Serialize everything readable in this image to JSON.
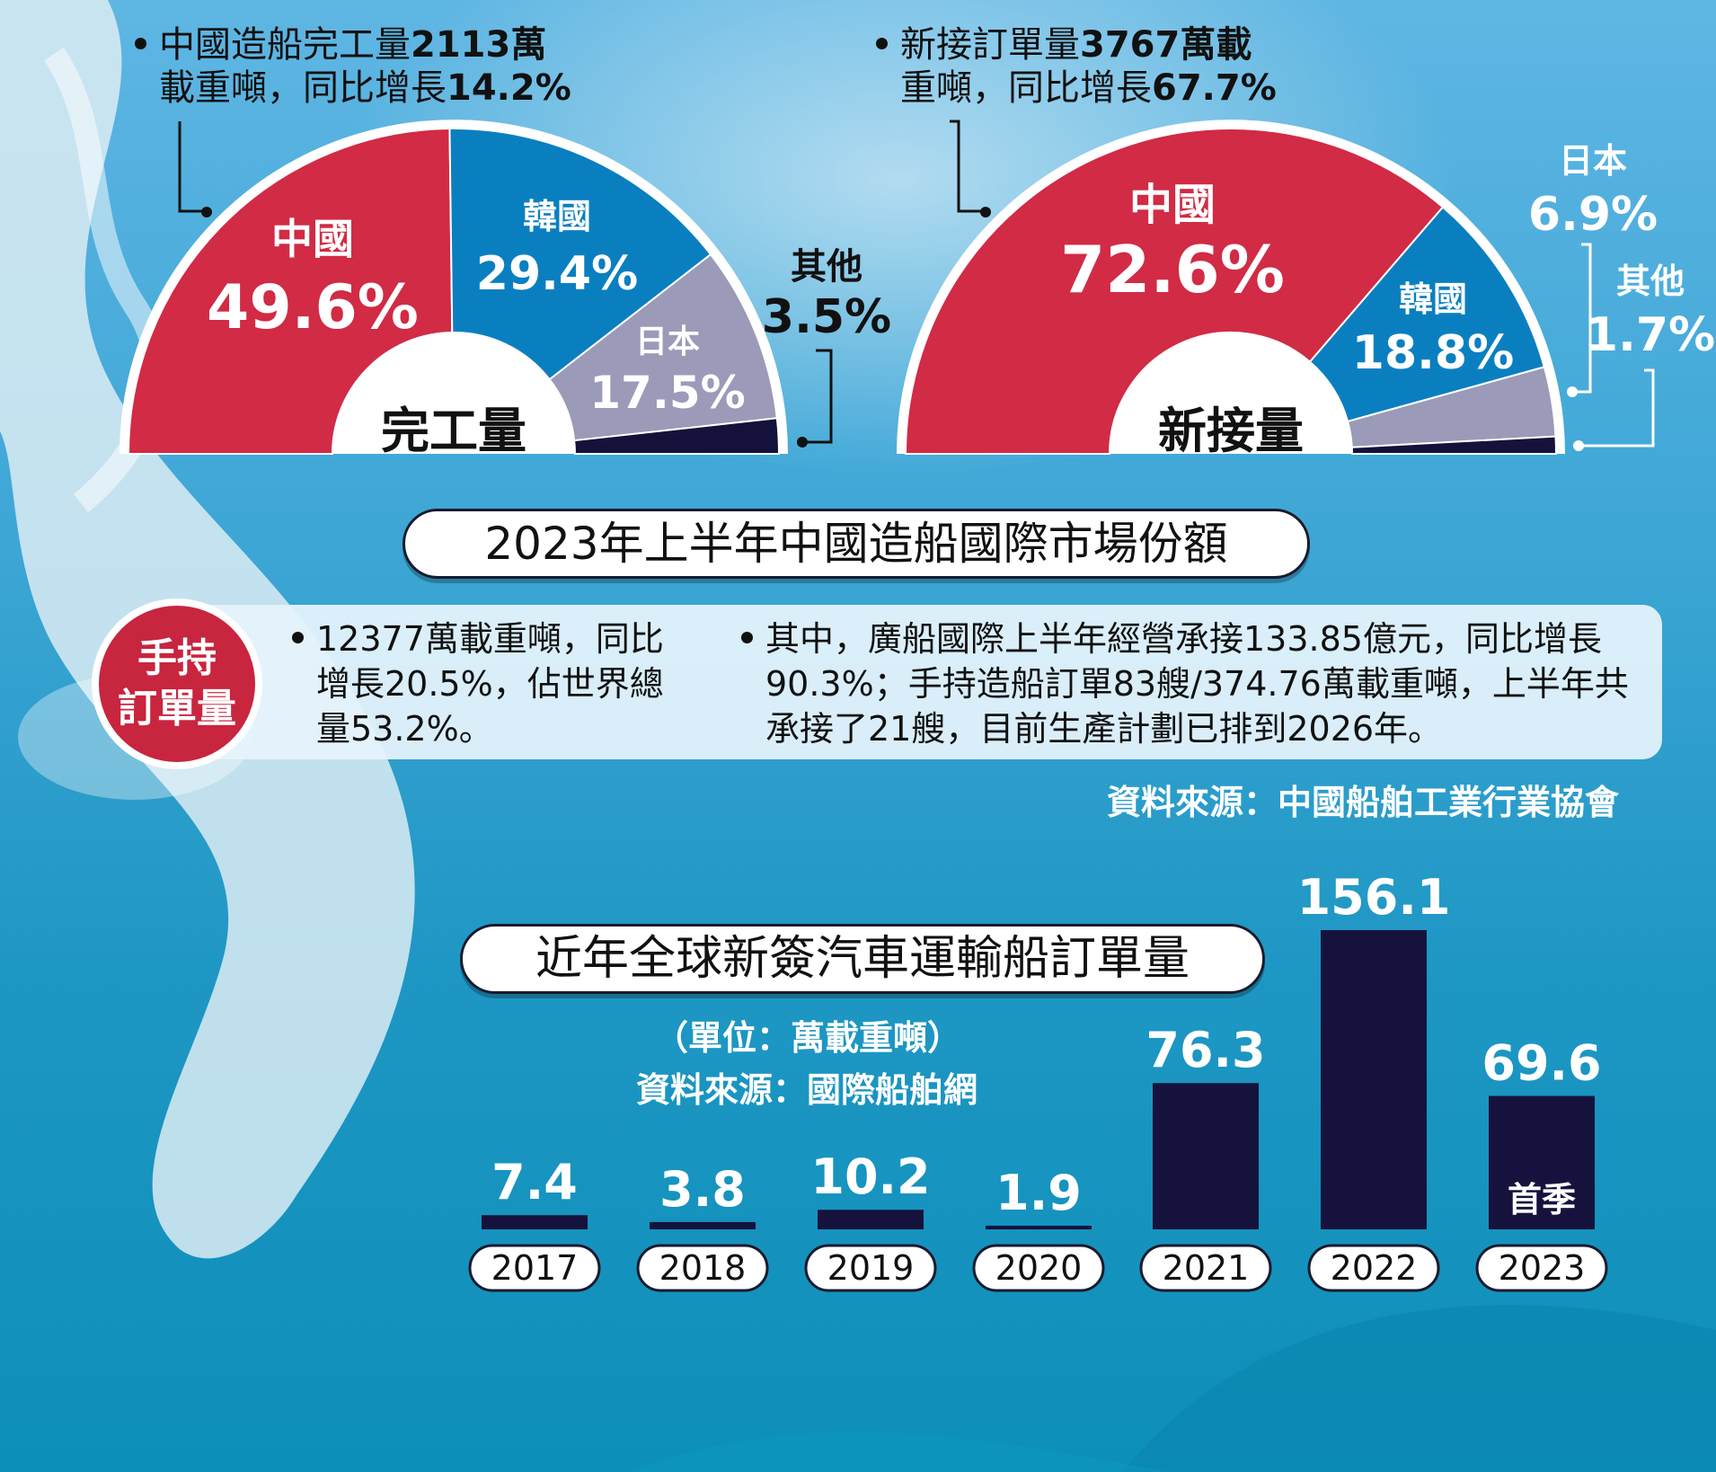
{
  "completion_note": {
    "line1_prefix": "中國造船完工量",
    "line1_bold": "2113萬",
    "line2_prefix": "載重噸，同比增長",
    "line2_bold": "14.2%"
  },
  "orders_note": {
    "line1_prefix": "新接訂單量",
    "line1_bold": "3767萬載",
    "line2_prefix": "重噸，同比增長",
    "line2_bold": "67.7%"
  },
  "main_title": "2023年上半年中國造船國際市場份額",
  "holding": {
    "badge_line1": "手持",
    "badge_line2": "訂單量",
    "left_text": "12377萬載重噸，同比增長20.5%，佔世界總量53.2%。",
    "left_lines": [
      "12377萬載重噸，同比",
      "增長20.5%，佔世界總",
      "量53.2%。"
    ],
    "right_lines": [
      "其中，廣船國際上半年經營承接133.85億元，同比增長",
      "90.3%；手持造船訂單83艘/374.76萬載重噸，上半年共",
      "承接了21艘，目前生產計劃已排到2026年。"
    ]
  },
  "source_top": "資料來源：中國船舶工業行業協會",
  "bar_title": "近年全球新簽汽車運輸船訂單量",
  "bar_unit": "（單位：萬載重噸）",
  "bar_source": "資料來源：國際船舶網",
  "colors": {
    "china": "#d12b45",
    "korea": "#0a7fc0",
    "japan": "#9b9ab8",
    "other": "#14123a",
    "bar": "#15133d"
  },
  "chart_data": [
    {
      "type": "pie",
      "subtype": "semicircle-donut",
      "center_label": "完工量",
      "slices": [
        {
          "label": "中國",
          "value": 49.6,
          "display": "49.6%"
        },
        {
          "label": "韓國",
          "value": 29.4,
          "display": "29.4%"
        },
        {
          "label": "日本",
          "value": 17.5,
          "display": "17.5%"
        },
        {
          "label": "其他",
          "value": 3.5,
          "display": "3.5%"
        }
      ]
    },
    {
      "type": "pie",
      "subtype": "semicircle-donut",
      "center_label": "新接量",
      "slices": [
        {
          "label": "中國",
          "value": 72.6,
          "display": "72.6%"
        },
        {
          "label": "韓國",
          "value": 18.8,
          "display": "18.8%"
        },
        {
          "label": "日本",
          "value": 6.9,
          "display": "6.9%"
        },
        {
          "label": "其他",
          "value": 1.7,
          "display": "1.7%"
        }
      ]
    },
    {
      "type": "bar",
      "title": "近年全球新簽汽車運輸船訂單量",
      "unit": "萬載重噸",
      "categories": [
        "2017",
        "2018",
        "2019",
        "2020",
        "2021",
        "2022",
        "2023"
      ],
      "values": [
        7.4,
        3.8,
        10.2,
        1.9,
        76.3,
        156.1,
        69.6
      ],
      "value_labels": [
        "7.4",
        "3.8",
        "10.2",
        "1.9",
        "76.3",
        "156.1",
        "69.6"
      ],
      "bar_annotations": [
        null,
        null,
        null,
        null,
        null,
        null,
        "首季"
      ],
      "ylim": [
        0,
        156.1
      ]
    }
  ]
}
